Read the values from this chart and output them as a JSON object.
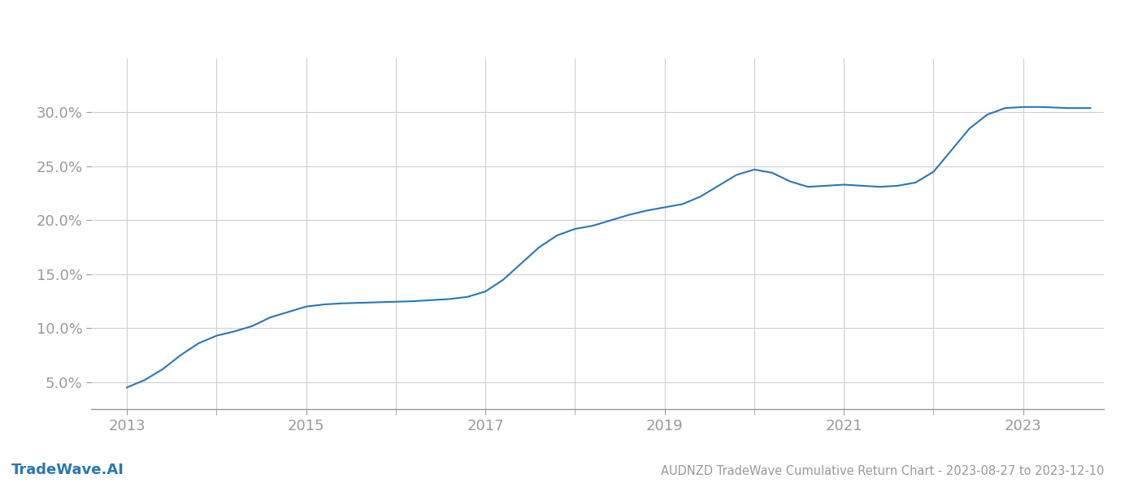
{
  "title": "AUDNZD TradeWave Cumulative Return Chart - 2023-08-27 to 2023-12-10",
  "watermark": "TradeWave.AI",
  "line_color": "#2878b5",
  "background_color": "#ffffff",
  "grid_color": "#d0d0d0",
  "x_values": [
    2013.0,
    2013.2,
    2013.4,
    2013.6,
    2013.8,
    2014.0,
    2014.2,
    2014.4,
    2014.6,
    2014.8,
    2015.0,
    2015.2,
    2015.4,
    2015.6,
    2015.8,
    2016.0,
    2016.2,
    2016.4,
    2016.6,
    2016.8,
    2017.0,
    2017.2,
    2017.4,
    2017.6,
    2017.8,
    2018.0,
    2018.2,
    2018.4,
    2018.6,
    2018.8,
    2019.0,
    2019.2,
    2019.4,
    2019.6,
    2019.8,
    2020.0,
    2020.2,
    2020.4,
    2020.6,
    2020.8,
    2021.0,
    2021.2,
    2021.4,
    2021.6,
    2021.8,
    2022.0,
    2022.2,
    2022.4,
    2022.6,
    2022.8,
    2023.0,
    2023.2,
    2023.5,
    2023.75
  ],
  "y_values": [
    4.5,
    5.2,
    6.2,
    7.5,
    8.6,
    9.3,
    9.7,
    10.2,
    11.0,
    11.5,
    12.0,
    12.2,
    12.3,
    12.35,
    12.4,
    12.45,
    12.5,
    12.6,
    12.7,
    12.9,
    13.4,
    14.5,
    16.0,
    17.5,
    18.6,
    19.2,
    19.5,
    20.0,
    20.5,
    20.9,
    21.2,
    21.5,
    22.2,
    23.2,
    24.2,
    24.7,
    24.4,
    23.6,
    23.1,
    23.2,
    23.3,
    23.2,
    23.1,
    23.2,
    23.5,
    24.5,
    26.5,
    28.5,
    29.8,
    30.4,
    30.5,
    30.5,
    30.4,
    30.4
  ],
  "xticks": [
    2013,
    2015,
    2017,
    2019,
    2021,
    2023
  ],
  "yticks": [
    5.0,
    10.0,
    15.0,
    20.0,
    25.0,
    30.0
  ],
  "ylim": [
    2.5,
    35.0
  ],
  "xlim": [
    2012.6,
    2023.9
  ],
  "tick_color": "#999999",
  "tick_fontsize": 13,
  "title_fontsize": 10.5,
  "watermark_fontsize": 13,
  "line_width": 1.5,
  "grid_xticks": [
    2013,
    2014,
    2015,
    2016,
    2017,
    2018,
    2019,
    2020,
    2021,
    2022,
    2023
  ]
}
